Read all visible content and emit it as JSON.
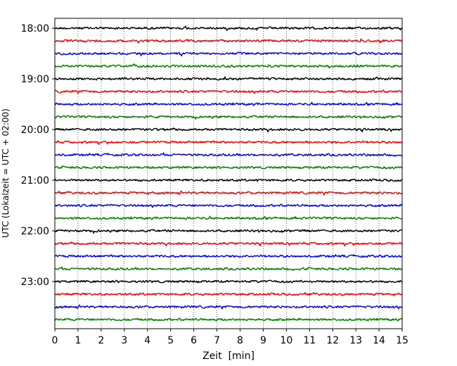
{
  "chart_data": {
    "type": "line",
    "xlabel": "Zeit  [min]",
    "ylabel": "UTC (Lokalzeit = UTC + 02:00)",
    "xlim": [
      0,
      15
    ],
    "x_ticks": [
      0,
      1,
      2,
      3,
      4,
      5,
      6,
      7,
      8,
      9,
      10,
      11,
      12,
      13,
      14,
      15
    ],
    "y_tick_labels": [
      "18:00",
      "19:00",
      "20:00",
      "21:00",
      "22:00",
      "23:00"
    ],
    "trace_interval_minutes": 15,
    "start_time": "18:00",
    "end_time": "23:45",
    "trace_count": 24,
    "grid": "vertical dotted at each minute",
    "trace_colors": [
      "#000000",
      "#ff0000",
      "#0000ff",
      "#008000"
    ],
    "traces": [
      {
        "time": "18:00",
        "color": "#000000"
      },
      {
        "time": "18:15",
        "color": "#ff0000"
      },
      {
        "time": "18:30",
        "color": "#0000ff"
      },
      {
        "time": "18:45",
        "color": "#008000"
      },
      {
        "time": "19:00",
        "color": "#000000"
      },
      {
        "time": "19:15",
        "color": "#ff0000"
      },
      {
        "time": "19:30",
        "color": "#0000ff"
      },
      {
        "time": "19:45",
        "color": "#008000"
      },
      {
        "time": "20:00",
        "color": "#000000"
      },
      {
        "time": "20:15",
        "color": "#ff0000"
      },
      {
        "time": "20:30",
        "color": "#0000ff"
      },
      {
        "time": "20:45",
        "color": "#008000"
      },
      {
        "time": "21:00",
        "color": "#000000"
      },
      {
        "time": "21:15",
        "color": "#ff0000"
      },
      {
        "time": "21:30",
        "color": "#0000ff"
      },
      {
        "time": "21:45",
        "color": "#008000"
      },
      {
        "time": "22:00",
        "color": "#000000"
      },
      {
        "time": "22:15",
        "color": "#ff0000"
      },
      {
        "time": "22:30",
        "color": "#0000ff"
      },
      {
        "time": "22:45",
        "color": "#008000"
      },
      {
        "time": "23:00",
        "color": "#000000"
      },
      {
        "time": "23:15",
        "color": "#ff0000"
      },
      {
        "time": "23:30",
        "color": "#0000ff"
      },
      {
        "time": "23:45",
        "color": "#008000"
      }
    ]
  }
}
